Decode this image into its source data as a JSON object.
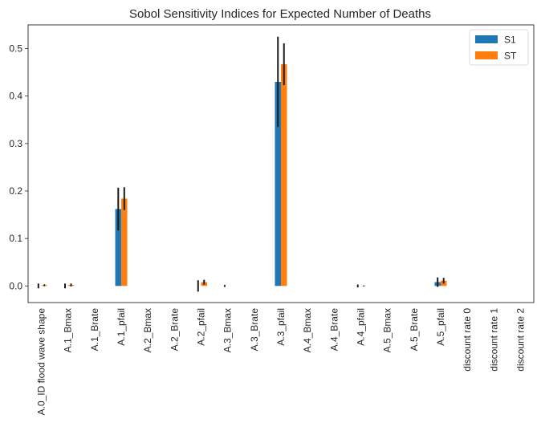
{
  "chart_data": {
    "type": "bar",
    "title": "Sobol Sensitivity Indices for Expected Number of Deaths",
    "xlabel": "",
    "ylabel": "",
    "ylim": [
      -0.035,
      0.55
    ],
    "yticks": [
      0.0,
      0.1,
      0.2,
      0.3,
      0.4,
      0.5
    ],
    "ytick_labels": [
      "0.0",
      "0.1",
      "0.2",
      "0.3",
      "0.4",
      "0.5"
    ],
    "grid": false,
    "legend_position": "top-right",
    "categories": [
      "A.0_ID flood wave shape",
      "A.1_Bmax",
      "A.1_Brate",
      "A.1_pfail",
      "A.2_Bmax",
      "A.2_Brate",
      "A.2_pfail",
      "A.3_Bmax",
      "A.3_Brate",
      "A.3_pfail",
      "A.4_Bmax",
      "A.4_Brate",
      "A.4_pfail",
      "A.5_Bmax",
      "A.5_Brate",
      "A.5_pfail",
      "discount rate 0",
      "discount rate 1",
      "discount rate 2"
    ],
    "series": [
      {
        "name": "S1",
        "color": "#1f77b4",
        "values": [
          0.0,
          0.0,
          0.0,
          0.162,
          0.0,
          0.0,
          0.0,
          0.0,
          0.0,
          0.43,
          0.0,
          0.0,
          0.0,
          0.0,
          0.0,
          0.008,
          0.0,
          0.0,
          0.0
        ],
        "errors": [
          0.005,
          0.005,
          0.0,
          0.045,
          0.0,
          0.0,
          0.012,
          0.002,
          0.0,
          0.095,
          0.0,
          0.0,
          0.003,
          0.0,
          0.0,
          0.01,
          0.0,
          0.0,
          0.0
        ]
      },
      {
        "name": "ST",
        "color": "#ff7f0e",
        "values": [
          0.0015,
          0.002,
          0.0,
          0.184,
          0.0,
          0.0,
          0.008,
          0.0,
          0.0,
          0.467,
          0.0,
          0.0,
          0.0,
          0.0,
          0.0,
          0.011,
          0.0,
          0.0,
          0.0
        ],
        "errors": [
          0.002,
          0.003,
          0.0,
          0.024,
          0.0,
          0.0,
          0.005,
          0.0,
          0.0,
          0.044,
          0.0,
          0.0,
          0.001,
          0.0,
          0.0,
          0.006,
          0.0,
          0.0,
          0.0
        ]
      }
    ]
  }
}
